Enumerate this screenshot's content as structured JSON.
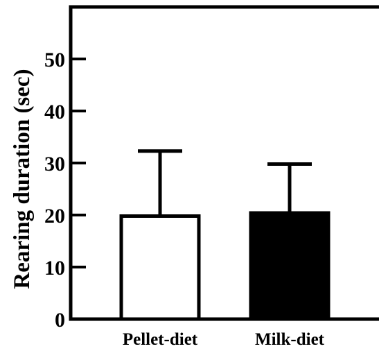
{
  "chart_data": {
    "type": "bar",
    "categories": [
      "Pellet-diet",
      "Milk-diet"
    ],
    "values": [
      19.8,
      20.4
    ],
    "error_upper": [
      32.3,
      29.8
    ],
    "bar_fill": [
      "#ffffff",
      "#000000"
    ],
    "ylabel": "Rearing duration (sec)",
    "xlabel": "",
    "ylim": [
      0,
      60
    ],
    "yticks": [
      0,
      10,
      20,
      30,
      40,
      50
    ],
    "grid": false
  }
}
